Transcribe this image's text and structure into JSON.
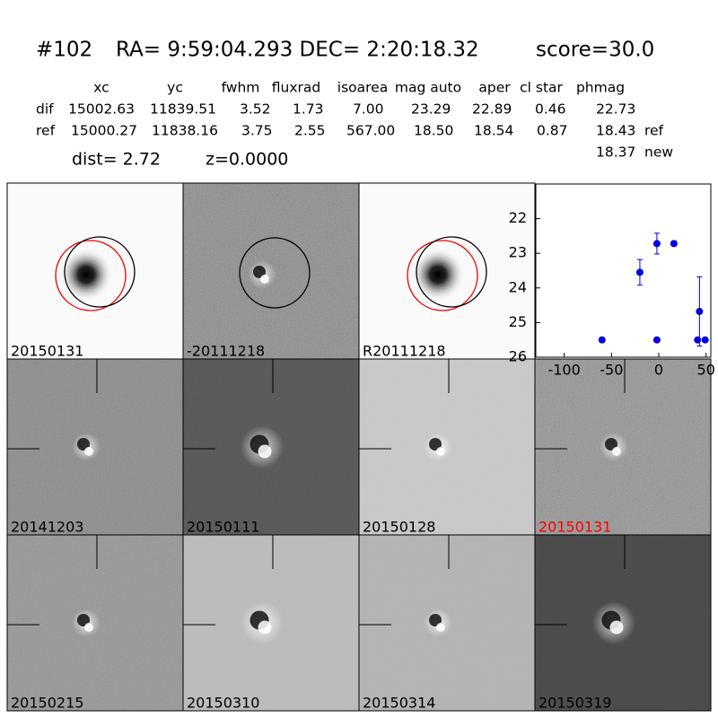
{
  "header": {
    "id": "#102",
    "coords": "RA= 9:59:04.293 DEC= 2:20:18.32",
    "score": "score=30.0"
  },
  "table": {
    "columns": [
      "xc",
      "yc",
      "fwhm",
      "fluxrad",
      "isoarea",
      "mag auto",
      "aper",
      "cl star",
      "phmag"
    ],
    "rows": [
      {
        "label": "dif",
        "cells": [
          "15002.63",
          "11839.51",
          "3.52",
          "1.73",
          "7.00",
          "23.29",
          "22.89",
          "0.46",
          "22.73"
        ]
      },
      {
        "label": "ref",
        "cells": [
          "15000.27",
          "11838.16",
          "3.75",
          "2.55",
          "567.00",
          "18.50",
          "18.54",
          "0.87",
          "18.43"
        ],
        "note": "ref"
      }
    ],
    "extra": {
      "value": "18.37",
      "note": "new"
    }
  },
  "dist": "dist=  2.72",
  "redshift": "z=0.0000",
  "panels": [
    {
      "label": "20150131"
    },
    {
      "label": "-20111218"
    },
    {
      "label": "R20111218"
    },
    {
      "label": "20141203"
    },
    {
      "label": "20150111"
    },
    {
      "label": "20150128"
    },
    {
      "label": "20150131",
      "label_color": "#ff0000"
    },
    {
      "label": "20150215"
    },
    {
      "label": "20150310"
    },
    {
      "label": "20150314"
    },
    {
      "label": "20150319"
    }
  ],
  "chart_data": {
    "type": "scatter",
    "x": [
      -60,
      -20,
      -2,
      -2,
      16,
      41,
      43,
      49
    ],
    "series": [
      {
        "color": "#0000e0",
        "values": [
          25.5,
          23.55,
          22.72,
          25.5,
          22.72,
          25.5,
          24.68,
          25.5
        ],
        "errors": [
          null,
          0.37,
          0.3,
          null,
          0.07,
          null,
          1.0,
          null
        ]
      }
    ],
    "xlim": [
      -130,
      55
    ],
    "ylim": [
      26,
      21
    ],
    "xticks": [
      -100,
      -50,
      0,
      50
    ],
    "yticks": [
      22,
      23,
      24,
      25,
      26
    ]
  }
}
